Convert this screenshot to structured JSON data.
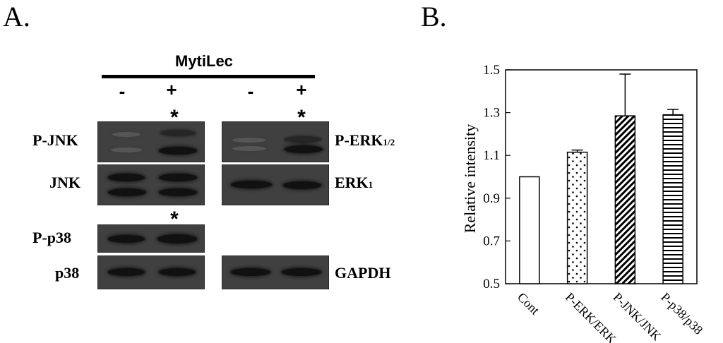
{
  "panel_a": {
    "letter": "A.",
    "header": "MytiLec",
    "signs": [
      "-",
      "+",
      "-",
      "+"
    ],
    "significance_marker": "*",
    "labels": {
      "p_jnk": "P-JNK",
      "jnk": "JNK",
      "p_p38": "P-p38",
      "p38": "p38",
      "p_erk_main": "P-ERK",
      "p_erk_sub": "1/2",
      "erk_main": "ERK",
      "erk_sub": "1",
      "gapdh": "GAPDH"
    }
  },
  "panel_b": {
    "letter": "B."
  },
  "chart_data": {
    "type": "bar",
    "title": "",
    "xlabel": "",
    "ylabel": "Relative intensity",
    "ylim": [
      0.5,
      1.5
    ],
    "yticks": [
      0.5,
      0.7,
      0.9,
      1.1,
      1.3,
      1.5
    ],
    "ytick_labels": [
      "0.5",
      "0.7",
      "0.9",
      "1.1",
      "1.3",
      "1.5"
    ],
    "categories": [
      "Cont",
      "P-ERK/ERK",
      "P-JNK/JNK",
      "P-p38/p38"
    ],
    "values": [
      1.0,
      1.115,
      1.285,
      1.29
    ],
    "errors": [
      0.0,
      0.01,
      0.195,
      0.025
    ],
    "patterns": [
      "none",
      "dots",
      "diagonal-hatch",
      "horizontal-lines"
    ],
    "grid": false
  }
}
